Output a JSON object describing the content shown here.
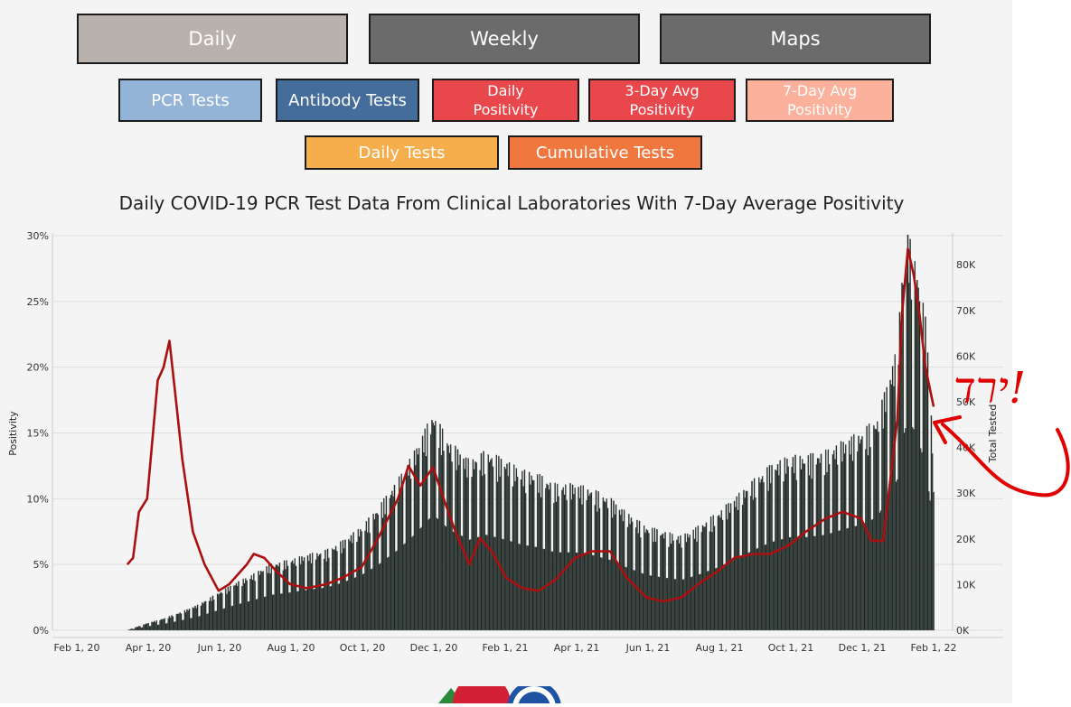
{
  "nav": {
    "daily": "Daily",
    "weekly": "Weekly",
    "maps": "Maps"
  },
  "metrics": {
    "pcr": "PCR Tests",
    "antibody": "Antibody Tests",
    "daily_pos_1": "Daily",
    "daily_pos_2": "Positivity",
    "avg3_1": "3-Day Avg",
    "avg3_2": "Positivity",
    "avg7_1": "7-Day Avg",
    "avg7_2": "Positivity"
  },
  "views": {
    "daily_tests": "Daily Tests",
    "cumulative_tests": "Cumulative Tests"
  },
  "colors": {
    "daily_active": "#b8b1ac",
    "nav_inactive": "#6b6b6b",
    "pcr": "#93b3d7",
    "antibody": "#456d9c",
    "red": "#e8474c",
    "salmon": "#fbb19b",
    "orange_light": "#f6ae4c",
    "orange": "#f0773e",
    "bars": "#1a2624",
    "line": "#aa1010",
    "annotation": "#e00000"
  },
  "icons": [
    "logo-triangle-green",
    "logo-circle-red",
    "logo-seal-blue"
  ],
  "chart_data": {
    "type": "bar",
    "title": "Daily COVID-19 PCR Test Data From Clinical Laboratories With 7-Day Average Positivity",
    "ylabel_left": "Positivity",
    "ylabel_right": "Total Tested",
    "y_left_ticks": [
      "0%",
      "5%",
      "10%",
      "15%",
      "20%",
      "25%",
      "30%"
    ],
    "y_left_range": [
      0,
      30
    ],
    "y_right_ticks": [
      "0K",
      "10K",
      "20K",
      "30K",
      "40K",
      "50K",
      "60K",
      "70K",
      "80K"
    ],
    "y_right_range": [
      0,
      84000
    ],
    "x_ticks": [
      "Feb 1, 20",
      "Apr 1, 20",
      "Jun 1, 20",
      "Aug 1, 20",
      "Oct 1, 20",
      "Dec 1, 20",
      "Feb 1, 21",
      "Apr 1, 21",
      "Jun 1, 21",
      "Aug 1, 21",
      "Oct 1, 21",
      "Dec 1, 21",
      "Feb 1, 22"
    ],
    "series": [
      {
        "name": "Total Tested",
        "kind": "bar",
        "x": [
          "2020-03-15",
          "2020-04-01",
          "2020-04-15",
          "2020-05-01",
          "2020-05-15",
          "2020-06-01",
          "2020-06-15",
          "2020-07-01",
          "2020-07-15",
          "2020-08-01",
          "2020-08-15",
          "2020-09-01",
          "2020-09-15",
          "2020-10-01",
          "2020-10-15",
          "2020-11-01",
          "2020-11-15",
          "2020-12-01",
          "2020-12-15",
          "2021-01-01",
          "2021-01-15",
          "2021-02-01",
          "2021-02-15",
          "2021-03-01",
          "2021-03-15",
          "2021-04-01",
          "2021-04-15",
          "2021-05-01",
          "2021-05-15",
          "2021-06-01",
          "2021-06-15",
          "2021-07-01",
          "2021-07-15",
          "2021-08-01",
          "2021-08-15",
          "2021-09-01",
          "2021-09-15",
          "2021-10-01",
          "2021-10-15",
          "2021-11-01",
          "2021-11-15",
          "2021-12-01",
          "2021-12-15",
          "2022-01-01",
          "2022-01-05",
          "2022-01-10",
          "2022-01-15",
          "2022-01-20",
          "2022-01-25",
          "2022-01-30",
          "2022-02-01"
        ],
        "values": [
          0,
          1500,
          2500,
          4000,
          5500,
          8000,
          10000,
          12000,
          14000,
          15000,
          16000,
          17000,
          19000,
          22000,
          26000,
          32000,
          38000,
          46000,
          40000,
          36000,
          38000,
          36000,
          34000,
          33000,
          31000,
          31000,
          30000,
          28000,
          25000,
          22000,
          21000,
          20000,
          22000,
          25000,
          28000,
          32000,
          35000,
          37000,
          37000,
          38000,
          40000,
          42000,
          45000,
          60000,
          75000,
          84000,
          80000,
          74000,
          66000,
          48000,
          30000
        ]
      },
      {
        "name": "7-Day Average Positivity",
        "kind": "line",
        "x": [
          "2020-03-15",
          "2020-03-20",
          "2020-03-25",
          "2020-04-01",
          "2020-04-05",
          "2020-04-10",
          "2020-04-15",
          "2020-04-20",
          "2020-04-25",
          "2020-05-01",
          "2020-05-10",
          "2020-05-20",
          "2020-06-01",
          "2020-06-10",
          "2020-06-20",
          "2020-06-25",
          "2020-07-01",
          "2020-07-10",
          "2020-07-20",
          "2020-08-01",
          "2020-08-15",
          "2020-09-01",
          "2020-09-15",
          "2020-10-01",
          "2020-10-15",
          "2020-11-01",
          "2020-11-10",
          "2020-11-20",
          "2020-12-01",
          "2020-12-10",
          "2020-12-20",
          "2021-01-01",
          "2021-01-10",
          "2021-01-20",
          "2021-02-01",
          "2021-02-15",
          "2021-03-01",
          "2021-03-15",
          "2021-04-01",
          "2021-04-15",
          "2021-05-01",
          "2021-05-15",
          "2021-06-01",
          "2021-06-15",
          "2021-07-01",
          "2021-07-15",
          "2021-08-01",
          "2021-08-15",
          "2021-09-01",
          "2021-09-15",
          "2021-10-01",
          "2021-10-15",
          "2021-11-01",
          "2021-11-15",
          "2021-12-01",
          "2021-12-10",
          "2021-12-20",
          "2022-01-01",
          "2022-01-05",
          "2022-01-10",
          "2022-01-15",
          "2022-01-20",
          "2022-01-25",
          "2022-02-01"
        ],
        "values": [
          5,
          5.5,
          9,
          10,
          14,
          19,
          20,
          22,
          18,
          13,
          7.5,
          5,
          3,
          3.5,
          4.5,
          5,
          5.8,
          5.5,
          4.5,
          3.5,
          3.2,
          3.5,
          4,
          4.8,
          7,
          10,
          12.5,
          11,
          12.4,
          10,
          7.5,
          5,
          7,
          6,
          4,
          3.2,
          3,
          3.8,
          5.5,
          6,
          6,
          4,
          2.5,
          2.2,
          2.5,
          3.5,
          4.5,
          5.5,
          5.8,
          5.8,
          6.5,
          7.5,
          8.5,
          9,
          8.5,
          6.8,
          6.8,
          16,
          24,
          29,
          27,
          24,
          20,
          17
        ]
      }
    ]
  },
  "annotation": {
    "text": "ירד!",
    "kind": "handwritten"
  }
}
